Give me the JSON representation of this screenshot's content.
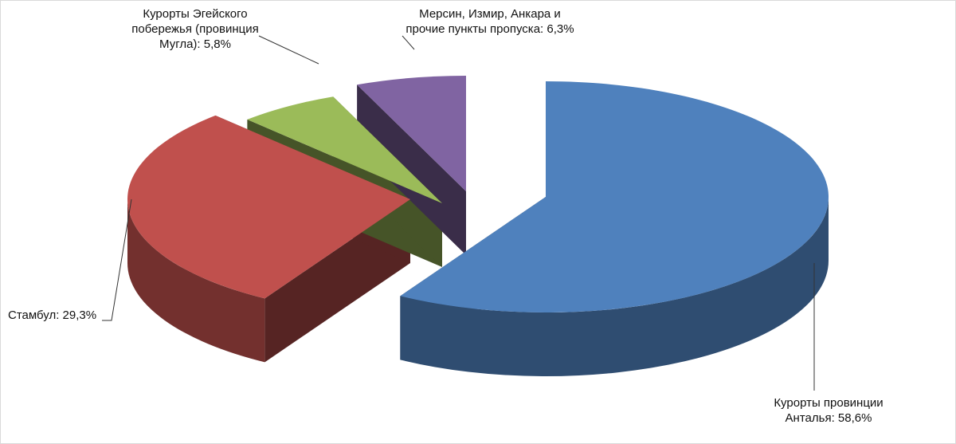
{
  "chart_data": {
    "type": "pie",
    "values": [
      58.6,
      29.3,
      5.8,
      6.3
    ],
    "value_labels": [
      "Курорты провинции Анталья: 58,6%",
      "Стамбул: 29,3%",
      "Курорты Эгейского побережья (провинция Мугла): 5,8%",
      "Мерсин, Измир, Анкара и прочие пункты пропуска: 6,3%"
    ],
    "colors": [
      "#4f81bd",
      "#c0504d",
      "#9bbb59",
      "#8064a2"
    ]
  }
}
